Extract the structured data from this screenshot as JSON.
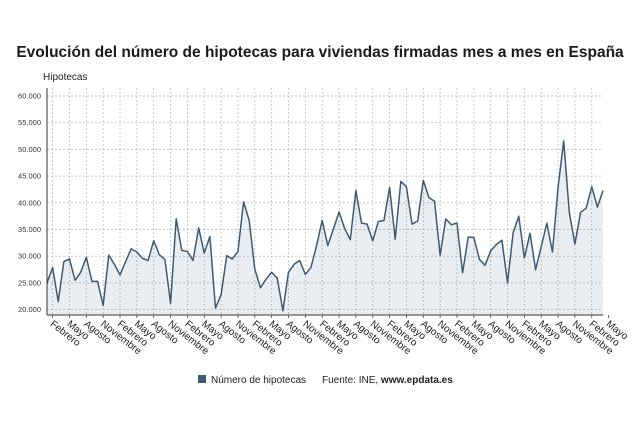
{
  "chart_data": {
    "type": "area",
    "title": "Evolución del número de hipotecas para viviendas firmadas mes a mes en España",
    "ylabel": "Hipotecas",
    "xlabel": "",
    "ylim": [
      19000,
      61500
    ],
    "y_ticks": [
      "20.000",
      "25.000",
      "30.000",
      "35.000",
      "40.000",
      "45.000",
      "50.000",
      "55.000",
      "60.000"
    ],
    "y_tick_values": [
      20000,
      25000,
      30000,
      35000,
      40000,
      45000,
      50000,
      55000,
      60000
    ],
    "x_tick_labels": [
      "Febrero",
      "Mayo",
      "Agosto",
      "Noviembre",
      "Febrero",
      "Mayo",
      "Agosto",
      "Noviembre",
      "Febrero",
      "Mayo",
      "Agosto",
      "Noviembre",
      "Febrero",
      "Mayo",
      "Agosto",
      "Noviembre",
      "Febrero",
      "Mayo",
      "Agosto",
      "Noviembre",
      "Febrero",
      "Mayo",
      "Agosto",
      "Noviembre",
      "Febrero",
      "Mayo",
      "Agosto",
      "Noviembre",
      "Febrero",
      "Mayo",
      "Agosto",
      "Noviembre",
      "Febrero",
      "Mayo"
    ],
    "grid": true,
    "legend_position": "bottom",
    "series": [
      {
        "name": "Número de hipotecas",
        "color": "#3d5a73",
        "values": [
          25000,
          27900,
          21500,
          29000,
          29500,
          25500,
          27000,
          29800,
          25300,
          25300,
          20800,
          30200,
          28500,
          26500,
          29000,
          31400,
          30800,
          29600,
          29200,
          32900,
          30300,
          29400,
          21200,
          37000,
          31100,
          30900,
          29200,
          35300,
          30600,
          33700,
          20300,
          22800,
          30100,
          29500,
          30900,
          40200,
          36700,
          27600,
          24100,
          25700,
          27000,
          25900,
          19800,
          27000,
          28500,
          29200,
          26600,
          27900,
          32000,
          36700,
          32000,
          35100,
          38300,
          35200,
          33100,
          42300,
          36200,
          36000,
          32900,
          36500,
          36700,
          42900,
          33200,
          44000,
          43000,
          36000,
          36600,
          44200,
          41000,
          40300,
          30200,
          37000,
          35900,
          36200,
          26900,
          33600,
          33500,
          29400,
          28300,
          31000,
          32200,
          33000,
          25000,
          34400,
          37500,
          29700,
          34300,
          27500,
          31800,
          36200,
          30800,
          42900,
          51600,
          38200,
          32300,
          38200,
          39000,
          43000,
          39200,
          42300
        ]
      }
    ],
    "legend_source_prefix": "Fuente: INE, ",
    "legend_source_bold": "www.epdata.es"
  }
}
